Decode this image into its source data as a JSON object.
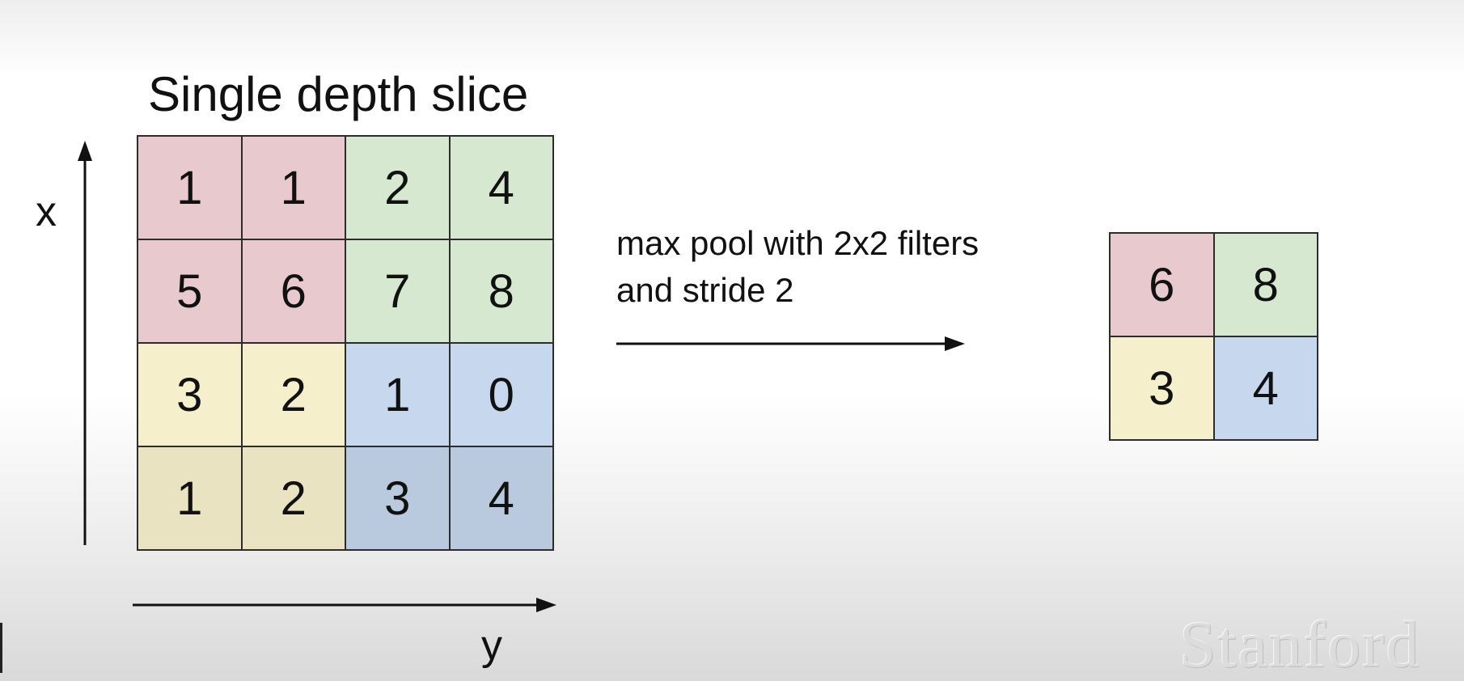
{
  "title": "Single depth slice",
  "axes": {
    "vertical_label": "x",
    "horizontal_label": "y"
  },
  "input_grid": {
    "rows": [
      [
        {
          "value": "1",
          "color": "#e7c9ce"
        },
        {
          "value": "1",
          "color": "#e7c9ce"
        },
        {
          "value": "2",
          "color": "#d7e8d1"
        },
        {
          "value": "4",
          "color": "#d7e8d1"
        }
      ],
      [
        {
          "value": "5",
          "color": "#e7c9ce"
        },
        {
          "value": "6",
          "color": "#e7c9ce"
        },
        {
          "value": "7",
          "color": "#d7e8d1"
        },
        {
          "value": "8",
          "color": "#d7e8d1"
        }
      ],
      [
        {
          "value": "3",
          "color": "#f5efcc"
        },
        {
          "value": "2",
          "color": "#f5efcc"
        },
        {
          "value": "1",
          "color": "#c7d8ee"
        },
        {
          "value": "0",
          "color": "#c7d8ee"
        }
      ],
      [
        {
          "value": "1",
          "color": "#e9e3c1"
        },
        {
          "value": "2",
          "color": "#e9e3c1"
        },
        {
          "value": "3",
          "color": "#b9c9de"
        },
        {
          "value": "4",
          "color": "#b9c9de"
        }
      ]
    ]
  },
  "operation": {
    "line1": "max pool with 2x2 filters",
    "line2": "and stride 2"
  },
  "output_grid": {
    "rows": [
      [
        {
          "value": "6",
          "color": "#e7c9ce"
        },
        {
          "value": "8",
          "color": "#d7e8d1"
        }
      ],
      [
        {
          "value": "3",
          "color": "#f5efcc"
        },
        {
          "value": "4",
          "color": "#c7d8ee"
        }
      ]
    ]
  },
  "watermark": "Stanford"
}
